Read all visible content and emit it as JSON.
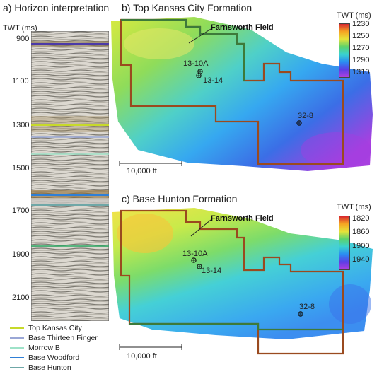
{
  "panel_a": {
    "title": "a) Horizon interpretation",
    "axis_label": "TWT (ms)",
    "ticks": [
      "900",
      "1100",
      "1300",
      "1500",
      "1700",
      "1900",
      "2100"
    ],
    "legend": [
      {
        "label": "Top Kansas City",
        "color": "#c7d92a"
      },
      {
        "label": "Base Thirteen Finger",
        "color": "#9aa7d6"
      },
      {
        "label": "Morrow B",
        "color": "#9ee2c8"
      },
      {
        "label": "Base Woodford",
        "color": "#2f7fd6"
      },
      {
        "label": "Base Hunton",
        "color": "#6fa7a7"
      }
    ]
  },
  "panel_b": {
    "title": "b) Top Kansas City Formation",
    "field_label": "Farnsworth Field",
    "wells": [
      "13-10A",
      "13-14",
      "32-8"
    ],
    "scale_label": "10,000 ft",
    "colorbar_title": "TWT (ms)",
    "colorbar_ticks": [
      "1230",
      "1250",
      "1270",
      "1290",
      "1310"
    ]
  },
  "panel_c": {
    "title": "c) Base Hunton Formation",
    "field_label": "Farnsworth Field",
    "wells": [
      "13-10A",
      "13-14",
      "32-8"
    ],
    "scale_label": "10,000 ft",
    "colorbar_title": "TWT (ms)",
    "colorbar_ticks": [
      "1820",
      "1860",
      "1900",
      "1940"
    ]
  },
  "chart_data": [
    {
      "type": "heatmap",
      "title": "b) Top Kansas City Formation",
      "zlabel": "TWT (ms)",
      "zlim": [
        1230,
        1320
      ],
      "colorbar_ticks": [
        1230,
        1250,
        1270,
        1290,
        1310
      ]
    },
    {
      "type": "heatmap",
      "title": "c) Base Hunton Formation",
      "zlabel": "TWT (ms)",
      "zlim": [
        1820,
        1950
      ],
      "colorbar_ticks": [
        1820,
        1860,
        1900,
        1940
      ]
    }
  ]
}
